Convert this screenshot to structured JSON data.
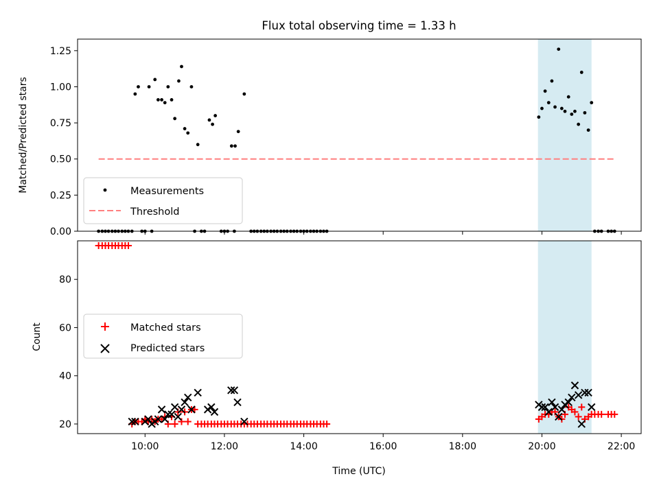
{
  "figure": {
    "title": "Flux total observing time = 1.33 h"
  },
  "chart_data": [
    {
      "type": "scatter",
      "title": "Flux total observing time = 1.33 h",
      "xlabel": "",
      "ylabel": "Matched/Predicted stars",
      "xlim": [
        8.3,
        22.5
      ],
      "ylim": [
        0.0,
        1.33
      ],
      "xticks": [
        10,
        12,
        14,
        16,
        18,
        20,
        22
      ],
      "yticks": [
        0.0,
        0.25,
        0.5,
        0.75,
        1.0,
        1.25
      ],
      "ytick_labels": [
        "0.00",
        "0.25",
        "0.50",
        "0.75",
        "1.00",
        "1.25"
      ],
      "grid": false,
      "legend": "lower-left",
      "shaded_region": {
        "x0": 19.9,
        "x1": 21.25,
        "color": "#add8e6"
      },
      "series": [
        {
          "name": "Measurements",
          "kind": "scatter",
          "color": "#000000",
          "x": [
            9.75,
            9.83,
            10.1,
            10.25,
            10.33,
            10.42,
            10.5,
            10.58,
            10.67,
            10.75,
            10.85,
            10.92,
            11.0,
            11.08,
            11.17,
            11.33,
            11.62,
            11.7,
            11.77,
            12.18,
            12.27,
            12.35,
            12.5,
            8.83,
            8.92,
            9.0,
            9.08,
            9.17,
            9.25,
            9.33,
            9.42,
            9.5,
            9.58,
            9.67,
            9.92,
            10.0,
            10.17,
            11.25,
            11.42,
            11.5,
            11.92,
            12.0,
            12.08,
            12.25,
            12.67,
            12.75,
            12.83,
            12.92,
            13.0,
            13.08,
            13.17,
            13.25,
            13.33,
            13.42,
            13.5,
            13.58,
            13.67,
            13.75,
            13.83,
            13.92,
            14.0,
            14.08,
            14.17,
            14.25,
            14.33,
            14.42,
            14.5,
            14.58,
            19.92,
            20.0,
            20.08,
            20.17,
            20.25,
            20.33,
            20.42,
            20.5,
            20.58,
            20.67,
            20.75,
            20.83,
            20.92,
            21.0,
            21.08,
            21.17,
            21.25,
            21.33,
            21.42,
            21.5,
            21.67,
            21.75,
            21.83
          ],
          "y": [
            0.95,
            1.0,
            1.0,
            1.05,
            0.91,
            0.91,
            0.89,
            1.0,
            0.91,
            0.78,
            1.04,
            1.14,
            0.71,
            0.68,
            1.0,
            0.6,
            0.77,
            0.74,
            0.8,
            0.59,
            0.59,
            0.69,
            0.95,
            0,
            0,
            0,
            0,
            0,
            0,
            0,
            0,
            0,
            0,
            0,
            0,
            0,
            0,
            0,
            0,
            0,
            0,
            0,
            0,
            0,
            0,
            0,
            0,
            0,
            0,
            0,
            0,
            0,
            0,
            0,
            0,
            0,
            0,
            0,
            0,
            0,
            0,
            0,
            0,
            0,
            0,
            0,
            0,
            0,
            0.79,
            0.85,
            0.97,
            0.89,
            1.04,
            0.86,
            1.26,
            0.85,
            0.83,
            0.93,
            0.81,
            0.83,
            0.74,
            1.1,
            0.82,
            0.7,
            0.89,
            0,
            0,
            0,
            0,
            0,
            0
          ]
        },
        {
          "name": "Threshold",
          "kind": "line",
          "style": "dashed",
          "color": "#ff7f7f",
          "x": [
            8.83,
            21.83
          ],
          "y": [
            0.5,
            0.5
          ]
        }
      ]
    },
    {
      "type": "scatter",
      "xlabel": "Time (UTC)",
      "ylabel": "Count",
      "xlim": [
        8.3,
        22.5
      ],
      "ylim": [
        16,
        96
      ],
      "xticks": [
        10,
        12,
        14,
        16,
        18,
        20,
        22
      ],
      "xtick_labels": [
        "10:00",
        "12:00",
        "14:00",
        "16:00",
        "18:00",
        "20:00",
        "22:00"
      ],
      "yticks": [
        20,
        40,
        60,
        80
      ],
      "ytick_labels": [
        "20",
        "40",
        "60",
        "80"
      ],
      "grid": false,
      "legend": "center-left",
      "shaded_region": {
        "x0": 19.9,
        "x1": 21.25,
        "color": "#add8e6"
      },
      "series": [
        {
          "name": "Matched stars",
          "kind": "scatter",
          "marker": "plus",
          "color": "#ff0000",
          "x": [
            8.83,
            8.92,
            9.0,
            9.08,
            9.17,
            9.25,
            9.33,
            9.42,
            9.5,
            9.58,
            9.67,
            9.75,
            9.83,
            9.92,
            10.0,
            10.08,
            10.17,
            10.25,
            10.33,
            10.42,
            10.5,
            10.58,
            10.67,
            10.75,
            10.83,
            10.92,
            11.0,
            11.08,
            11.17,
            11.25,
            11.33,
            11.42,
            11.5,
            11.58,
            11.67,
            11.75,
            11.83,
            11.92,
            12.0,
            12.08,
            12.17,
            12.25,
            12.33,
            12.42,
            12.5,
            12.58,
            12.67,
            12.75,
            12.83,
            12.92,
            13.0,
            13.08,
            13.17,
            13.25,
            13.33,
            13.42,
            13.5,
            13.58,
            13.67,
            13.75,
            13.83,
            13.92,
            14.0,
            14.08,
            14.17,
            14.25,
            14.33,
            14.42,
            14.5,
            14.58,
            19.92,
            20.0,
            20.08,
            20.17,
            20.25,
            20.33,
            20.42,
            20.5,
            20.58,
            20.67,
            20.75,
            20.83,
            20.92,
            21.0,
            21.08,
            21.17,
            21.25,
            21.33,
            21.42,
            21.5,
            21.67,
            21.75,
            21.83
          ],
          "y": [
            94,
            94,
            94,
            94,
            94,
            94,
            94,
            94,
            94,
            94,
            20,
            21,
            21,
            21,
            22,
            21,
            22,
            21,
            22,
            22,
            23,
            20,
            23,
            20,
            25,
            21,
            25,
            21,
            26,
            26,
            20,
            20,
            20,
            20,
            20,
            20,
            20,
            20,
            20,
            20,
            20,
            20,
            20,
            20,
            20,
            20,
            20,
            20,
            20,
            20,
            20,
            20,
            20,
            20,
            20,
            20,
            20,
            20,
            20,
            20,
            20,
            20,
            20,
            20,
            20,
            20,
            20,
            20,
            20,
            20,
            22,
            23,
            24,
            24,
            25,
            25,
            23,
            22,
            24,
            27,
            26,
            25,
            23,
            27,
            22,
            23,
            24,
            24,
            24,
            24,
            24,
            24,
            24
          ]
        },
        {
          "name": "Predicted stars",
          "kind": "scatter",
          "marker": "x",
          "color": "#000000",
          "x": [
            9.67,
            9.75,
            10.0,
            10.08,
            10.17,
            10.25,
            10.33,
            10.42,
            10.5,
            10.58,
            10.67,
            10.75,
            10.83,
            10.92,
            11.0,
            11.08,
            11.17,
            11.33,
            11.58,
            11.67,
            11.75,
            12.17,
            12.25,
            12.33,
            12.5,
            19.92,
            20.0,
            20.08,
            20.17,
            20.25,
            20.33,
            20.42,
            20.5,
            20.58,
            20.67,
            20.75,
            20.83,
            20.92,
            21.0,
            21.08,
            21.17,
            21.25
          ],
          "y": [
            21,
            21,
            21,
            22,
            20,
            21,
            22,
            26,
            22,
            24,
            24,
            27,
            23,
            26,
            29,
            31,
            26,
            33,
            26,
            27,
            25,
            34,
            34,
            29,
            21,
            28,
            27,
            27,
            25,
            29,
            27,
            23,
            26,
            28,
            29,
            31,
            36,
            32,
            20,
            33,
            33,
            27
          ]
        }
      ]
    }
  ]
}
